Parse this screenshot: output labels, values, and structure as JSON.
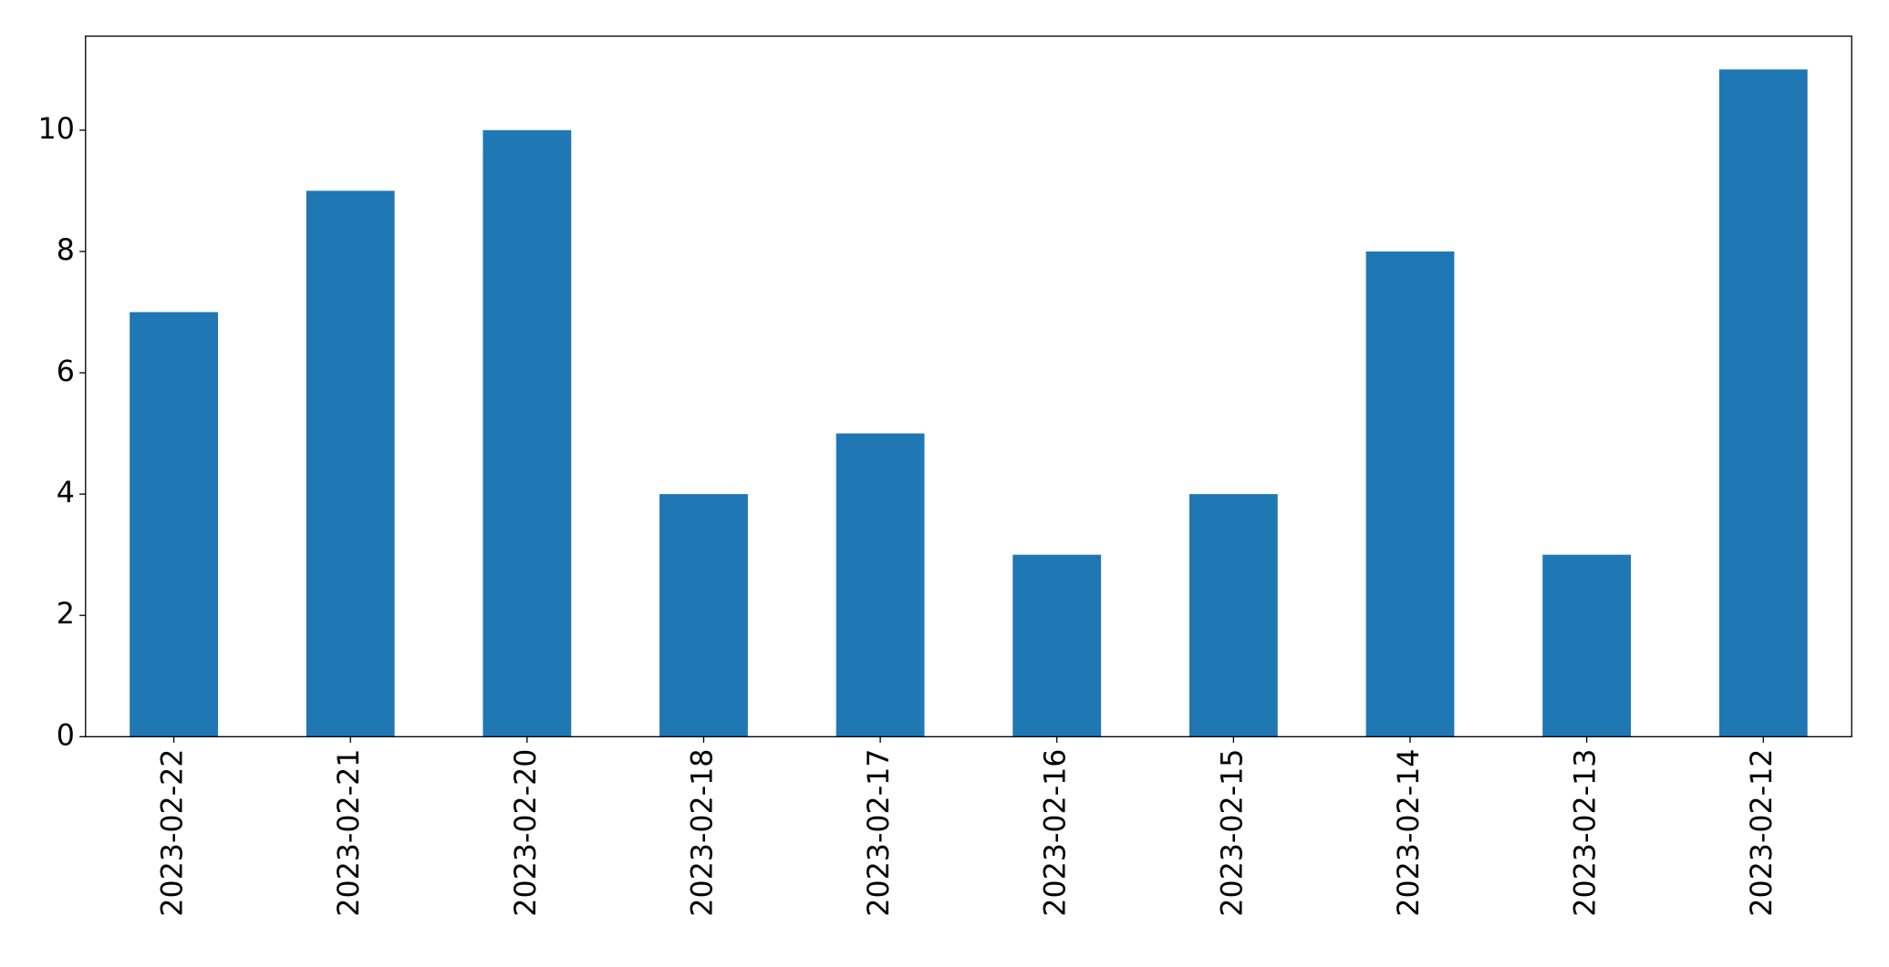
{
  "chart_data": {
    "type": "bar",
    "categories": [
      "2023-02-22",
      "2023-02-21",
      "2023-02-20",
      "2023-02-18",
      "2023-02-17",
      "2023-02-16",
      "2023-02-15",
      "2023-02-14",
      "2023-02-13",
      "2023-02-12"
    ],
    "values": [
      7,
      9,
      10,
      4,
      5,
      3,
      4,
      8,
      3,
      11
    ],
    "color": "#1f77b4",
    "ylim": [
      0,
      11.55
    ],
    "yticks": [
      0,
      2,
      4,
      6,
      8,
      10
    ],
    "grid": false
  }
}
